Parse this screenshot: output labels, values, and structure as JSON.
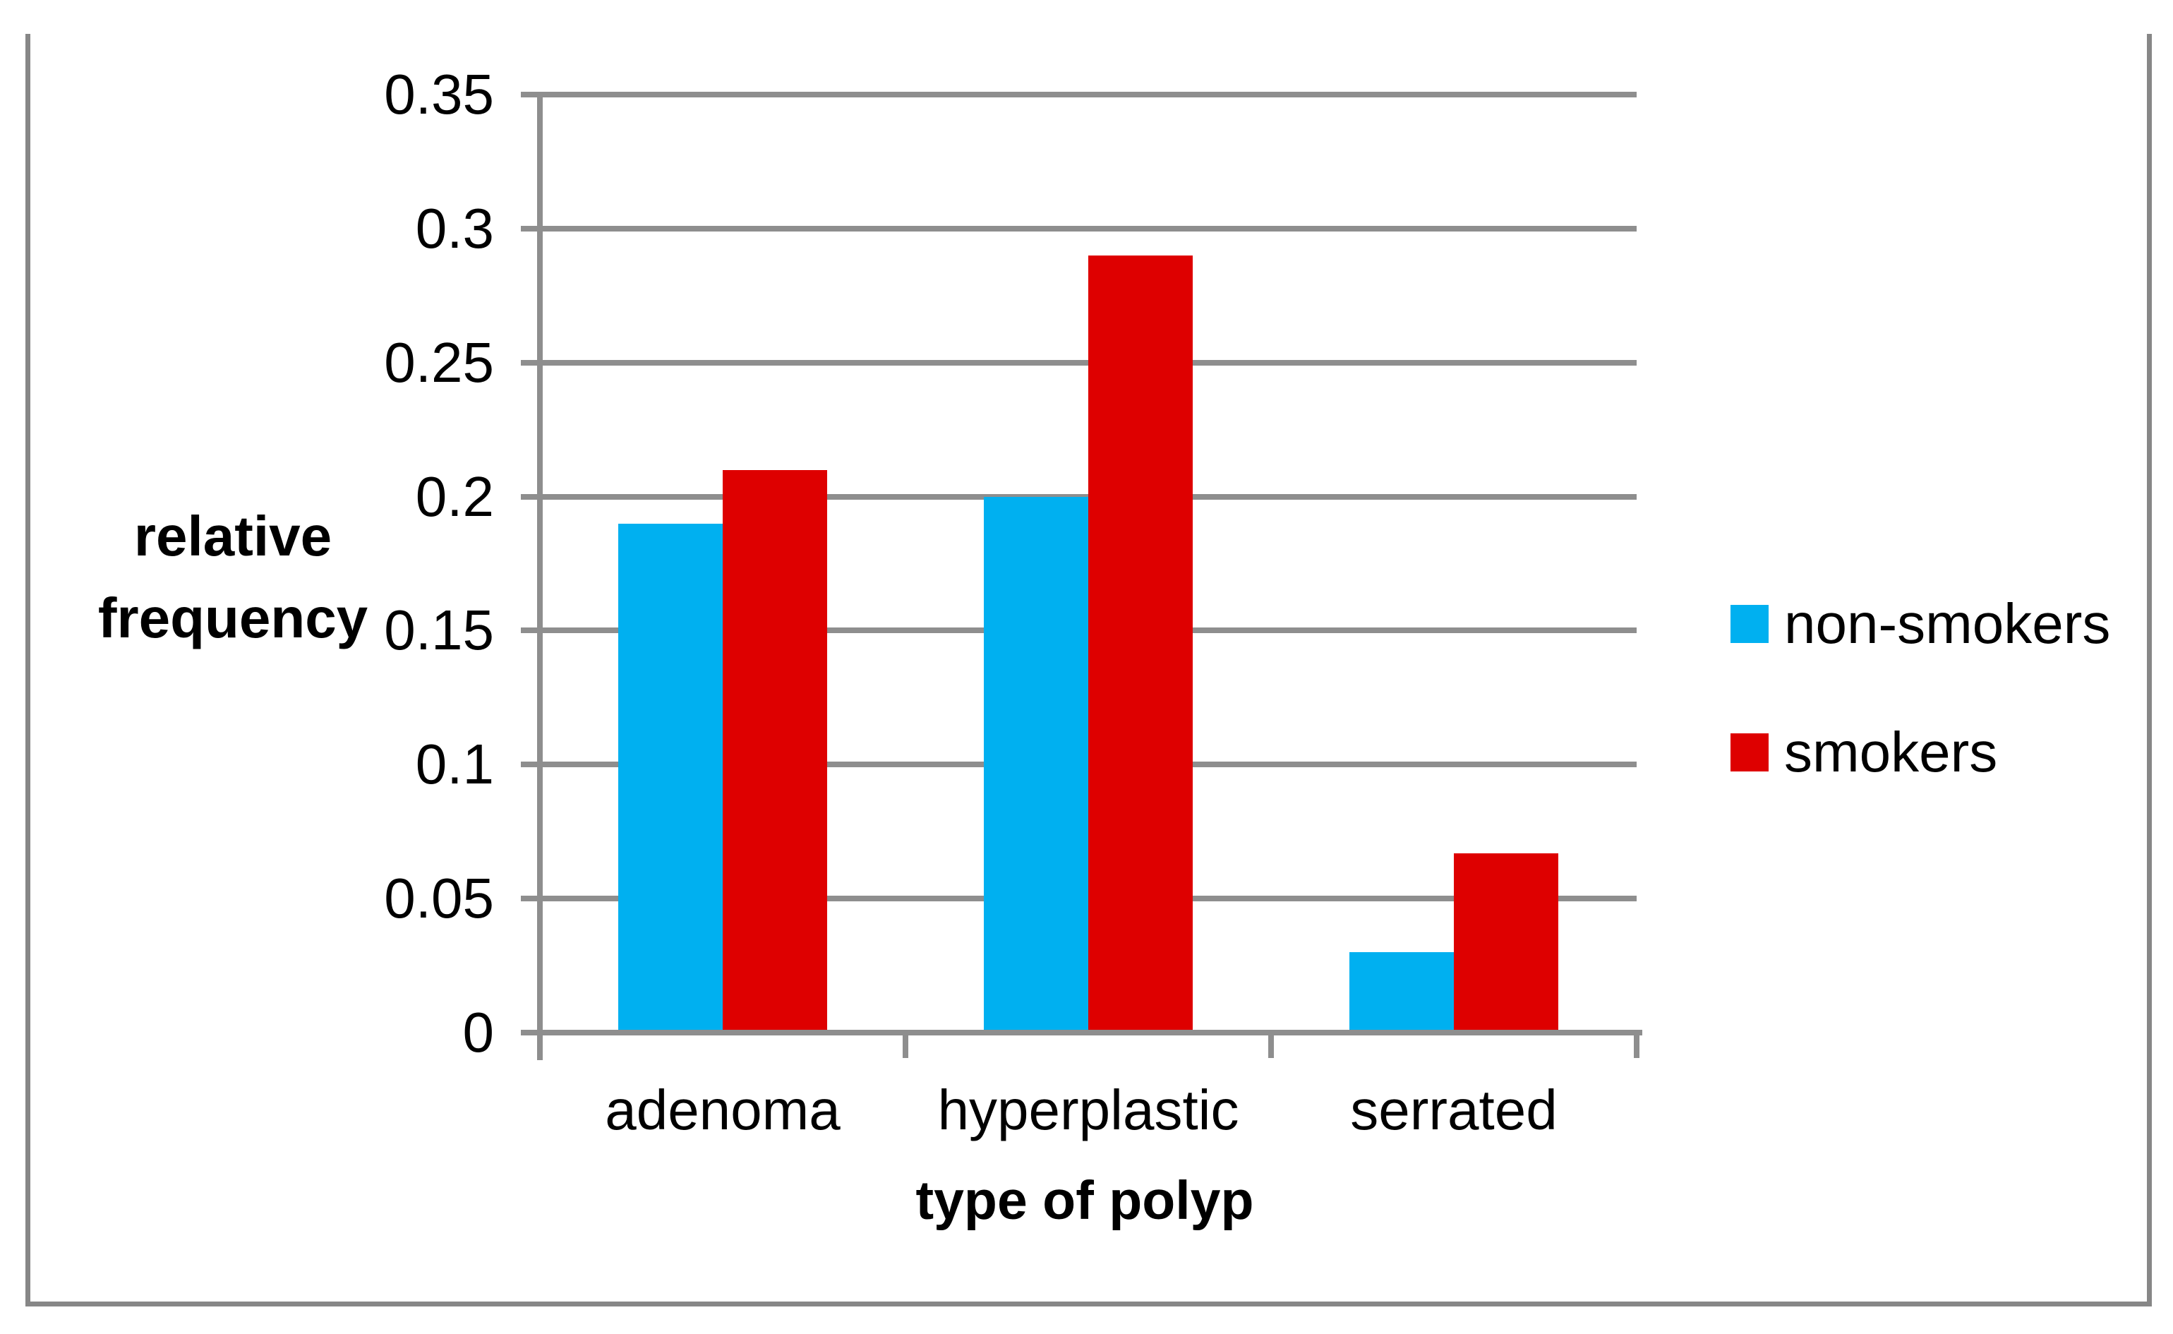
{
  "chart_data": {
    "type": "bar",
    "title": "",
    "categories": [
      "adenoma",
      "hyperplastic",
      "serrated"
    ],
    "series": [
      {
        "name": "non-smokers",
        "color": "#00B0F0",
        "values": [
          0.19,
          0.2,
          0.03
        ]
      },
      {
        "name": "smokers",
        "color": "#DE0000",
        "values": [
          0.21,
          0.29,
          0.067
        ]
      }
    ],
    "xlabel": "type of polyp",
    "ylabel": "relative frequency",
    "ylabel_lines": [
      "relative",
      "frequency"
    ],
    "ylim": [
      0,
      0.35
    ],
    "ytick_labels": [
      "0",
      "0.05",
      "0.1",
      "0.15",
      "0.2",
      "0.25",
      "0.3",
      "0.35"
    ],
    "grid": "horizontal",
    "legend_position": "right",
    "colors": {
      "gridline": "#8E8E8E",
      "frame": "#878787",
      "text": "#000000",
      "background": "#FFFFFF"
    }
  }
}
